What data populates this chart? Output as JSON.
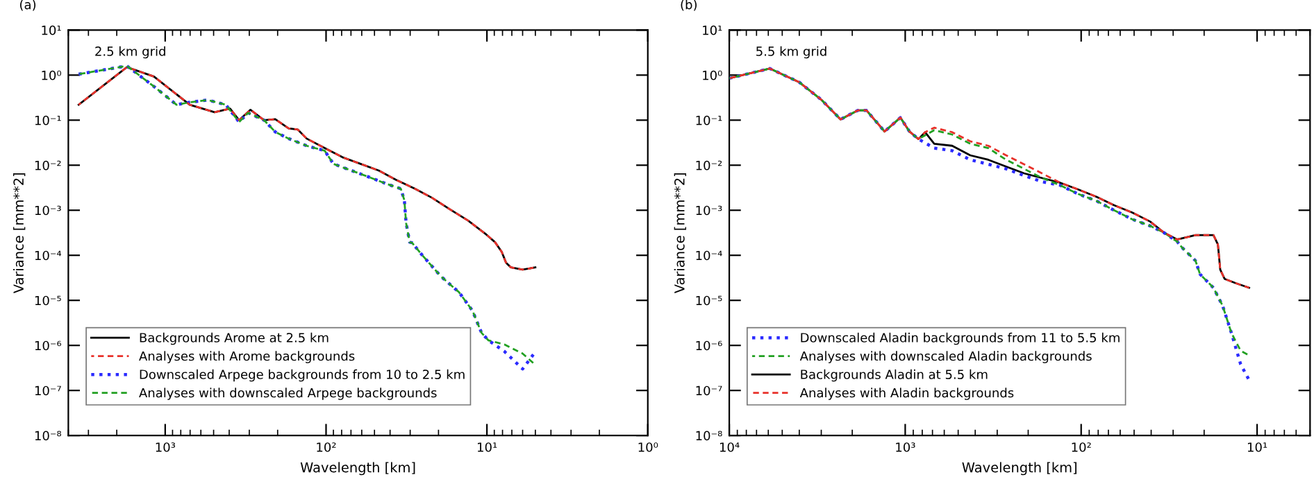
{
  "chart_data": [
    {
      "type": "line",
      "title": "(a)",
      "xlabel": "Wavelength [km]",
      "ylabel": "Variance [mm**2]",
      "annotations": [
        "2.5 km grid"
      ],
      "log": "xy",
      "grid": false,
      "legend": "bottom left",
      "xlim": [
        4000,
        1
      ],
      "xticks": [
        {
          "value": 1000,
          "label": "10³"
        },
        {
          "value": 100,
          "label": "10²"
        },
        {
          "value": 10,
          "label": "10¹"
        },
        {
          "value": 1,
          "label": "10⁰"
        }
      ],
      "ylim": [
        1e-08,
        10
      ],
      "yticks": [
        {
          "value": 1e-08,
          "label": "10⁻⁸"
        },
        {
          "value": 1e-07,
          "label": "10⁻⁷"
        },
        {
          "value": 1e-06,
          "label": "10⁻⁶"
        },
        {
          "value": 1e-05,
          "label": "10⁻⁵"
        },
        {
          "value": 0.0001,
          "label": "10⁻⁴"
        },
        {
          "value": 0.001,
          "label": "10⁻³"
        },
        {
          "value": 0.01,
          "label": "10⁻²"
        },
        {
          "value": 0.1,
          "label": "10⁻¹"
        },
        {
          "value": 1,
          "label": "10⁰"
        },
        {
          "value": 10,
          "label": "10¹"
        }
      ],
      "series": [
        {
          "name": "Backgrounds Arome at 2.5 km",
          "color": "#000000",
          "line_style": "solid",
          "x": [
            3450,
            1730,
            1175,
            703,
            493,
            395,
            347,
            295,
            243,
            207,
            171,
            150,
            132,
            102,
            79,
            61,
            47,
            37,
            28,
            22,
            17,
            13.1,
            10.1,
            8.9,
            8.1,
            7.6,
            7.1,
            6.0,
            5.0
          ],
          "values": [
            0.22,
            1.5,
            0.93,
            0.22,
            0.15,
            0.18,
            0.1,
            0.17,
            0.1,
            0.105,
            0.066,
            0.062,
            0.039,
            0.024,
            0.015,
            0.0107,
            0.0076,
            0.0048,
            0.003,
            0.0019,
            0.00105,
            0.00059,
            0.00029,
            0.000195,
            0.00012,
            6.8e-05,
            5.4e-05,
            4.8e-05,
            5.4e-05
          ]
        },
        {
          "name": "Analyses with Arome backgrounds",
          "color": "#e8312a",
          "line_style": "dashed",
          "x": [
            3450,
            1730,
            1175,
            703,
            493,
            395,
            347,
            295,
            243,
            207,
            171,
            150,
            132,
            102,
            79,
            61,
            47,
            37,
            28,
            22,
            17,
            13.1,
            10.1,
            8.9,
            8.1,
            7.6,
            7.1,
            6.0,
            5.0
          ],
          "values": [
            0.22,
            1.5,
            0.93,
            0.22,
            0.15,
            0.18,
            0.1,
            0.17,
            0.1,
            0.105,
            0.066,
            0.062,
            0.039,
            0.024,
            0.015,
            0.0107,
            0.0076,
            0.0048,
            0.003,
            0.0019,
            0.00105,
            0.00059,
            0.00029,
            0.000195,
            0.00012,
            6.8e-05,
            5.4e-05,
            4.8e-05,
            5.4e-05
          ]
        },
        {
          "name": "Downscaled Arpege backgrounds from 10 to 2.5 km",
          "color": "#2b2bff",
          "line_style": "dotted",
          "x": [
            3450,
            1730,
            1175,
            850,
            703,
            543,
            420,
            347,
            305,
            243,
            207,
            171,
            132,
            102,
            90,
            69.5,
            53.7,
            41.6,
            34.3,
            32.6,
            31.8,
            30.2,
            29.2,
            24.9,
            19.3,
            14.9,
            12.3,
            10.8,
            9.8,
            7.8,
            6.0,
            5.0
          ],
          "values": [
            1.05,
            1.6,
            0.56,
            0.22,
            0.25,
            0.28,
            0.22,
            0.091,
            0.145,
            0.1,
            0.055,
            0.039,
            0.027,
            0.021,
            0.0107,
            0.0076,
            0.0054,
            0.0038,
            0.003,
            0.00166,
            0.00052,
            0.000195,
            0.00019,
            9.5e-05,
            3.4e-05,
            1.51e-05,
            5.9e-06,
            1.9e-06,
            1.3e-06,
            7.4e-07,
            3e-07,
            7.2e-07
          ]
        },
        {
          "name": "Analyses with downscaled Arpege backgrounds",
          "color": "#22a022",
          "line_style": "dashed",
          "x": [
            3450,
            1730,
            1175,
            850,
            703,
            543,
            420,
            347,
            305,
            243,
            207,
            171,
            132,
            102,
            90,
            69.5,
            53.7,
            41.6,
            34.3,
            32.6,
            31.8,
            30.2,
            29.2,
            24.9,
            19.3,
            14.9,
            12.3,
            10.8,
            9.8,
            7.8,
            6.0,
            5.0
          ],
          "values": [
            1.05,
            1.6,
            0.56,
            0.22,
            0.25,
            0.28,
            0.22,
            0.091,
            0.145,
            0.1,
            0.055,
            0.039,
            0.027,
            0.021,
            0.0107,
            0.0076,
            0.0054,
            0.0038,
            0.003,
            0.00166,
            0.00052,
            0.000195,
            0.00019,
            9.5e-05,
            3.4e-05,
            1.51e-05,
            5.9e-06,
            1.9e-06,
            1.3e-06,
            1.05e-06,
            6.6e-07,
            3.7e-07
          ]
        }
      ]
    },
    {
      "type": "line",
      "title": "(b)",
      "xlabel": "Wavelength [km]",
      "ylabel": "Variance [mm**2]",
      "annotations": [
        "5.5 km grid"
      ],
      "log": "xy",
      "grid": false,
      "legend": "bottom left",
      "xlim": [
        10000,
        5
      ],
      "xticks": [
        {
          "value": 10000,
          "label": "10⁴"
        },
        {
          "value": 1000,
          "label": "10³"
        },
        {
          "value": 100,
          "label": "10²"
        },
        {
          "value": 10,
          "label": "10¹"
        }
      ],
      "ylim": [
        1e-08,
        10
      ],
      "yticks": [
        {
          "value": 1e-08,
          "label": "10⁻⁸"
        },
        {
          "value": 1e-07,
          "label": "10⁻⁷"
        },
        {
          "value": 1e-06,
          "label": "10⁻⁶"
        },
        {
          "value": 1e-05,
          "label": "10⁻⁵"
        },
        {
          "value": 0.0001,
          "label": "10⁻⁴"
        },
        {
          "value": 0.001,
          "label": "10⁻³"
        },
        {
          "value": 0.01,
          "label": "10⁻²"
        },
        {
          "value": 0.1,
          "label": "10⁻¹"
        },
        {
          "value": 1,
          "label": "10⁰"
        },
        {
          "value": 10,
          "label": "10¹"
        }
      ],
      "series": [
        {
          "name": "Downscaled Aladin backgrounds from 11 to 5.5 km",
          "color": "#2b2bff",
          "line_style": "dotted",
          "x": [
            10000,
            5890,
            4010,
            2985,
            2330,
            1860,
            1660,
            1310,
            1065,
            946,
            841,
            684,
            541,
            427,
            337,
            267,
            211,
            167,
            132,
            104,
            82,
            65,
            51.3,
            40.5,
            33.9,
            28.4,
            26.8,
            22.4,
            21.1,
            17.7,
            15.7,
            14.0,
            12.4,
            11.1
          ],
          "values": [
            0.85,
            1.4,
            0.7,
            0.28,
            0.104,
            0.165,
            0.165,
            0.056,
            0.114,
            0.056,
            0.038,
            0.024,
            0.021,
            0.0132,
            0.0105,
            0.0083,
            0.0059,
            0.0043,
            0.0036,
            0.0023,
            0.00162,
            0.001,
            0.00063,
            0.00045,
            0.00032,
            0.0002,
            0.000151,
            7.6e-05,
            3.8e-05,
            1.9e-05,
            7.6e-06,
            1.9e-06,
            3.8e-07,
            1.7e-07
          ]
        },
        {
          "name": "Analyses with downscaled Aladin backgrounds",
          "color": "#22a022",
          "line_style": "dashed",
          "x": [
            10000,
            5890,
            4010,
            2985,
            2330,
            1860,
            1660,
            1310,
            1065,
            946,
            841,
            684,
            541,
            427,
            337,
            267,
            211,
            167,
            132,
            104,
            82,
            65,
            51.3,
            40.5,
            33.9,
            28.4,
            26.8,
            22.4,
            21.1,
            17.7,
            15.7,
            14.0,
            12.4,
            11.1
          ],
          "values": [
            0.85,
            1.4,
            0.7,
            0.28,
            0.104,
            0.165,
            0.165,
            0.056,
            0.114,
            0.056,
            0.038,
            0.06,
            0.048,
            0.03,
            0.024,
            0.0132,
            0.0083,
            0.0052,
            0.0036,
            0.0023,
            0.00162,
            0.001,
            0.00063,
            0.00045,
            0.00032,
            0.0002,
            0.000151,
            7.6e-05,
            3.8e-05,
            1.9e-05,
            7.6e-06,
            1.9e-06,
            7.6e-07,
            6e-07
          ]
        },
        {
          "name": "Backgrounds Aladin at 5.5 km",
          "color": "#000000",
          "line_style": "solid",
          "x": [
            10000,
            5890,
            4010,
            2985,
            2330,
            1860,
            1660,
            1310,
            1065,
            946,
            841,
            771,
            684,
            541,
            427,
            337,
            267,
            211,
            167,
            132,
            104,
            82,
            65,
            51.3,
            40.5,
            33.9,
            28.4,
            22.4,
            17.7,
            16.7,
            16.2,
            15.3,
            13.2,
            11.1
          ],
          "values": [
            0.85,
            1.4,
            0.7,
            0.28,
            0.104,
            0.165,
            0.165,
            0.056,
            0.114,
            0.056,
            0.038,
            0.054,
            0.03,
            0.027,
            0.0166,
            0.0132,
            0.0093,
            0.0066,
            0.0052,
            0.0041,
            0.0029,
            0.002,
            0.00129,
            0.00089,
            0.00056,
            0.00032,
            0.000224,
            0.00028,
            0.00028,
            0.000174,
            4.8e-05,
            3e-05,
            2.4e-05,
            1.9e-05
          ]
        },
        {
          "name": "Analyses with Aladin backgrounds",
          "color": "#e8312a",
          "line_style": "dashed",
          "x": [
            10000,
            5890,
            4010,
            2985,
            2330,
            1860,
            1660,
            1310,
            1065,
            946,
            841,
            771,
            684,
            541,
            427,
            337,
            267,
            211,
            167,
            132,
            104,
            82,
            65,
            51.3,
            40.5,
            33.9,
            28.4,
            22.4,
            17.7,
            16.7,
            16.2,
            15.3,
            13.2,
            11.1
          ],
          "values": [
            0.85,
            1.4,
            0.7,
            0.28,
            0.104,
            0.165,
            0.165,
            0.056,
            0.114,
            0.056,
            0.038,
            0.054,
            0.068,
            0.054,
            0.034,
            0.027,
            0.0166,
            0.0105,
            0.0066,
            0.0041,
            0.0029,
            0.002,
            0.00129,
            0.00089,
            0.00056,
            0.00032,
            0.000224,
            0.00028,
            0.00028,
            0.000174,
            4.8e-05,
            3e-05,
            2.4e-05,
            1.9e-05
          ]
        }
      ]
    }
  ]
}
